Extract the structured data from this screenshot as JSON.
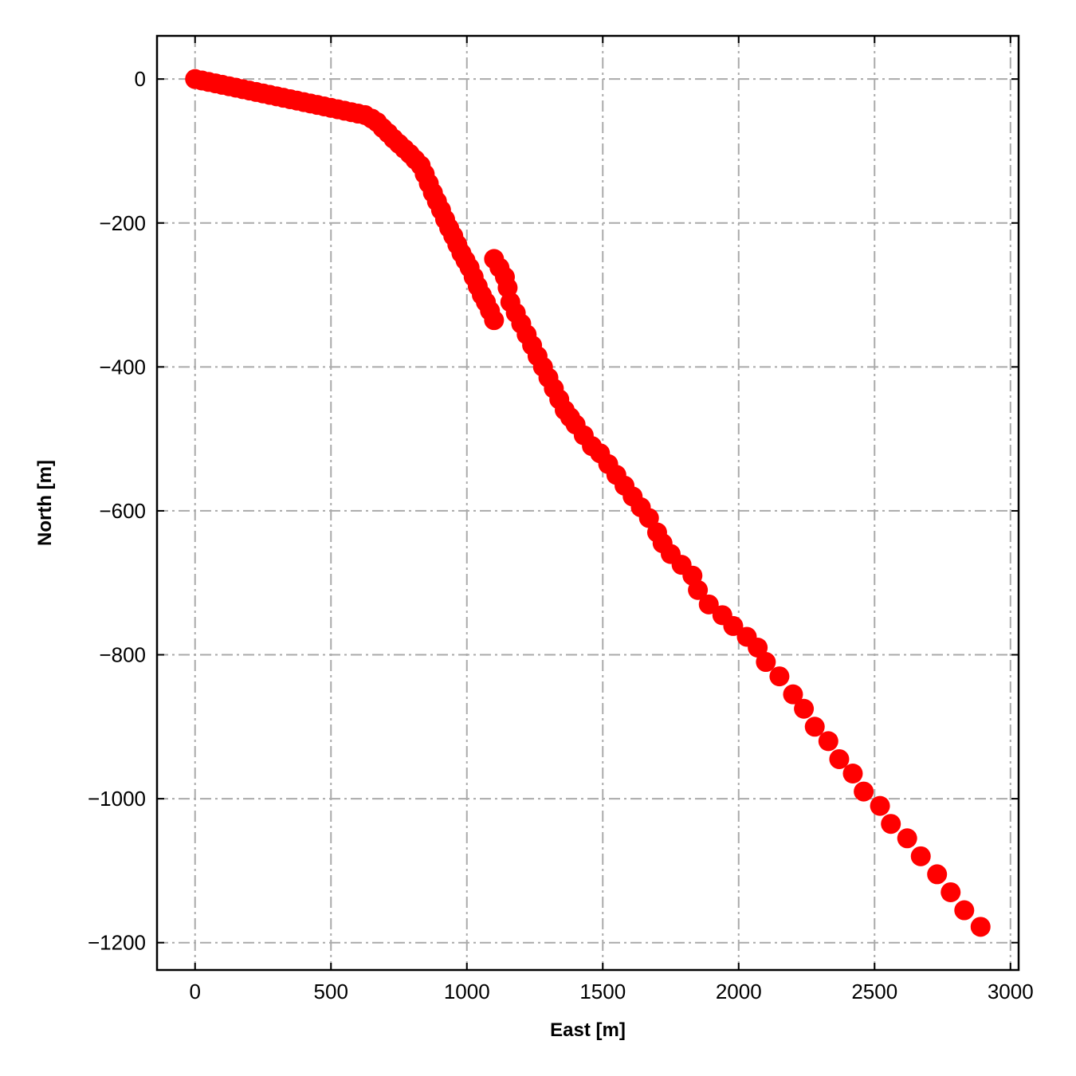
{
  "chart_data": {
    "type": "scatter",
    "xlabel": "East [m]",
    "ylabel": "North [m]",
    "xlim": [
      -140,
      3030
    ],
    "ylim": [
      -1238,
      60
    ],
    "xticks": [
      0,
      500,
      1000,
      1500,
      2000,
      2500,
      3000
    ],
    "yticks": [
      0,
      -200,
      -400,
      -600,
      -800,
      -1000,
      -1200
    ],
    "xtick_labels": [
      "0",
      "500",
      "1000",
      "1500",
      "2000",
      "2500",
      "3000"
    ],
    "ytick_labels": [
      "0",
      "−200",
      "−400",
      "−600",
      "−800",
      "−1000",
      "−1200"
    ],
    "grid": true,
    "marker_color": "#ff0000",
    "grid_color": "#aaaaaa",
    "series": [
      {
        "x": [
          0,
          25,
          50,
          75,
          100,
          125,
          150,
          175,
          200,
          225,
          250,
          275,
          300,
          325,
          350,
          375,
          400,
          425,
          450,
          475,
          500,
          525,
          550,
          575,
          600,
          625,
          650,
          670,
          690,
          710,
          730,
          750,
          770,
          790,
          810,
          830,
          845,
          860,
          875,
          890,
          905,
          920,
          935,
          950,
          965,
          980,
          995,
          1010,
          1025,
          1040,
          1055,
          1070,
          1085,
          1100,
          1100,
          1120,
          1140,
          1150,
          1160,
          1180,
          1200,
          1220,
          1240,
          1260,
          1280,
          1300,
          1320,
          1340,
          1360,
          1380,
          1400,
          1430,
          1460,
          1490,
          1520,
          1550,
          1580,
          1610,
          1640,
          1670,
          1700,
          1720,
          1750,
          1790,
          1830,
          1850,
          1890,
          1940,
          1980,
          2030,
          2070,
          2100,
          2150,
          2200,
          2240,
          2280,
          2330,
          2370,
          2420,
          2460,
          2520,
          2560,
          2620,
          2670,
          2730,
          2780,
          2830,
          2890
        ],
        "y": [
          0,
          -2,
          -4,
          -6,
          -8,
          -10,
          -12,
          -14,
          -16,
          -18,
          -20,
          -22,
          -24,
          -26,
          -28,
          -30,
          -32,
          -34,
          -36,
          -38,
          -40,
          -42,
          -44,
          -46,
          -48,
          -50,
          -55,
          -60,
          -68,
          -75,
          -83,
          -90,
          -97,
          -104,
          -112,
          -120,
          -132,
          -145,
          -158,
          -170,
          -182,
          -195,
          -207,
          -218,
          -230,
          -242,
          -252,
          -262,
          -275,
          -288,
          -300,
          -310,
          -322,
          -335,
          -250,
          -262,
          -275,
          -290,
          -310,
          -325,
          -340,
          -355,
          -370,
          -385,
          -400,
          -415,
          -430,
          -445,
          -460,
          -470,
          -480,
          -495,
          -510,
          -520,
          -535,
          -550,
          -565,
          -580,
          -595,
          -610,
          -630,
          -645,
          -660,
          -675,
          -690,
          -710,
          -730,
          -745,
          -760,
          -775,
          -790,
          -810,
          -830,
          -855,
          -875,
          -900,
          -920,
          -945,
          -965,
          -990,
          -1010,
          -1035,
          -1055,
          -1080,
          -1105,
          -1130,
          -1155,
          -1178
        ]
      }
    ]
  }
}
